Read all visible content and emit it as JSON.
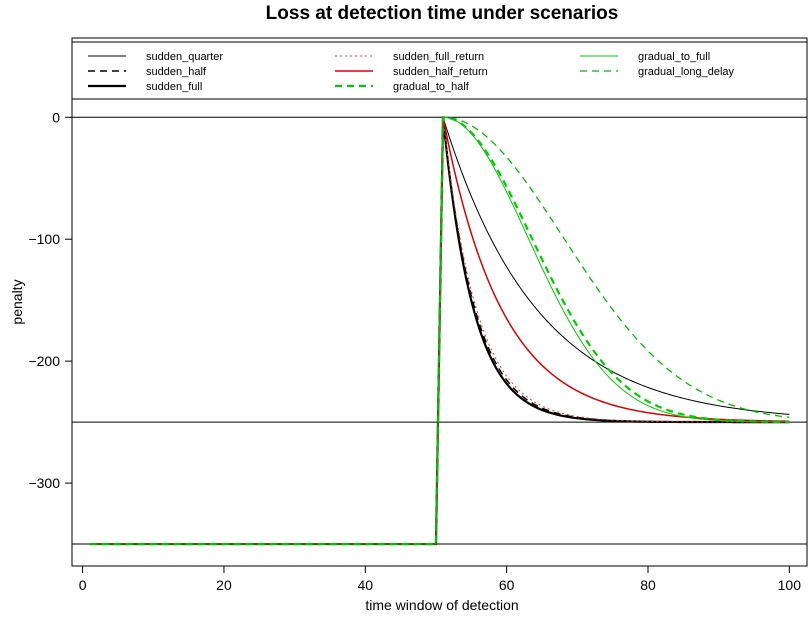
{
  "chart_data": {
    "type": "line",
    "title": "Loss at detection time under scenarios",
    "xlabel": "time window of detection",
    "ylabel": "penalty",
    "xlim": [
      -1.5,
      102.5
    ],
    "ylim": [
      -368,
      65
    ],
    "x_ticks": [
      0,
      20,
      40,
      60,
      80,
      100
    ],
    "y_ticks": [
      0,
      -100,
      -200,
      -300
    ],
    "x_tick_labels": [
      "0",
      "20",
      "40",
      "60",
      "80",
      "100"
    ],
    "y_tick_labels": [
      "0",
      "−100",
      "−200",
      "−300"
    ],
    "grid": false,
    "legend_position": "top",
    "reference_lines": [
      0,
      -250,
      -350
    ],
    "series": [
      {
        "name": "sudden_quarter",
        "color": "#000000",
        "dash": "solid",
        "width": 1,
        "pre": -350,
        "jump_x": 51,
        "k": 0.075
      },
      {
        "name": "sudden_half",
        "color": "#000000",
        "dash": "dashed",
        "width": 1.5,
        "pre": -350,
        "jump_x": 51,
        "k": 0.22
      },
      {
        "name": "sudden_full",
        "color": "#000000",
        "dash": "solid",
        "width": 2.2,
        "pre": -350,
        "jump_x": 51,
        "k": 0.23
      },
      {
        "name": "sudden_full_return",
        "color": "#ff3030",
        "dash": "dotted",
        "width": 1,
        "pre": -350,
        "jump_x": 51,
        "k": 0.21
      },
      {
        "name": "sudden_half_return",
        "color": "#dd0000",
        "dash": "solid",
        "width": 1.5,
        "pre": -350,
        "jump_x": 51,
        "k": 0.12
      },
      {
        "name": "gradual_to_half",
        "color": "#00cc00",
        "dash": "dashed",
        "width": 2.2,
        "pre": -350,
        "jump_x": 51,
        "gauss_s": 12.5
      },
      {
        "name": "gradual_to_full",
        "color": "#00cc00",
        "dash": "solid",
        "width": 1,
        "pre": -350,
        "jump_x": 51,
        "gauss_s": 12
      },
      {
        "name": "gradual_long_delay",
        "color": "#00bb00",
        "dash": "dashed",
        "width": 1.3,
        "pre": -350,
        "jump_x": 51,
        "gauss_s": 17
      }
    ],
    "plateau": -250,
    "x_range": [
      1,
      100
    ]
  }
}
